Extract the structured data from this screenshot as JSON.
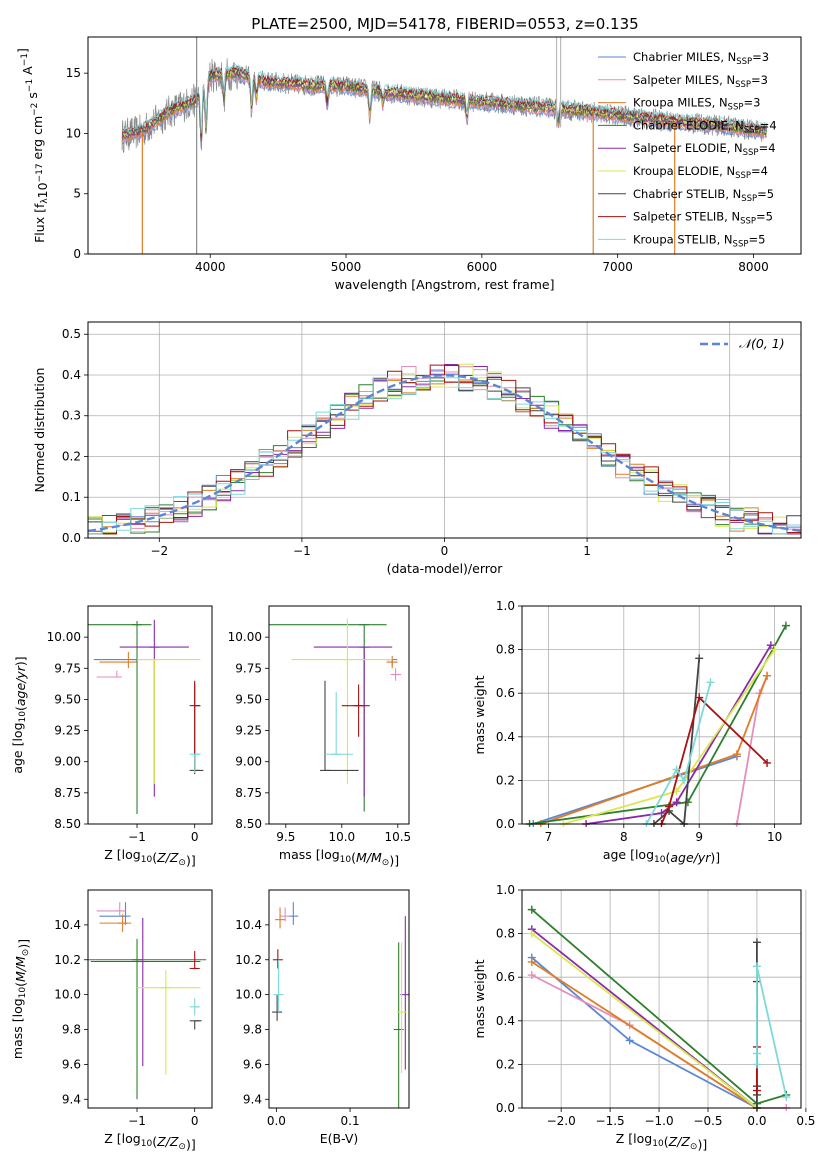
{
  "figure": {
    "title": "PLATE=2500, MJD=54178, FIBERID=0553, z=0.135"
  },
  "series_styles": [
    {
      "name": "Chabrier MILES, N_SSP=3",
      "color": "#5b86d6"
    },
    {
      "name": "Salpeter MILES, N_SSP=3",
      "color": "#e38fbd"
    },
    {
      "name": "Kroupa MILES, N_SSP=3",
      "color": "#e07d24"
    },
    {
      "name": "Chabrier ELODIE, N_SSP=4",
      "color": "#2e7f2e"
    },
    {
      "name": "Salpeter ELODIE, N_SSP=4",
      "color": "#8a2aa8"
    },
    {
      "name": "Kroupa ELODIE, N_SSP=4",
      "color": "#d8e84e"
    },
    {
      "name": "Chabrier STELIB, N_SSP=5",
      "color": "#444444"
    },
    {
      "name": "Salpeter STELIB, N_SSP=5",
      "color": "#aa1111"
    },
    {
      "name": "Kroupa STELIB, N_SSP=5",
      "color": "#7fd8d8"
    }
  ],
  "chart_data": [
    {
      "id": "spectrum",
      "type": "line",
      "title": "PLATE=2500, MJD=54178, FIBERID=0553, z=0.135",
      "xlabel": "wavelength [Angstrom, rest frame]",
      "ylabel": "Flux [f_λ10^-17 erg cm^-2 s^-1 A^-1]",
      "xlim": [
        3100,
        8350
      ],
      "ylim": [
        0,
        18
      ],
      "xticks": [
        "4000",
        "5000",
        "6000",
        "7000",
        "8000"
      ],
      "yticks": [
        "0",
        "5",
        "10",
        "15"
      ],
      "legend": {
        "placement": "top-right",
        "entries": [
          {
            "prefix": "Chabrier MILES, N",
            "sub": "SSP",
            "suffix": "=3"
          },
          {
            "prefix": "Salpeter MILES, N",
            "sub": "SSP",
            "suffix": "=3"
          },
          {
            "prefix": "Kroupa MILES, N",
            "sub": "SSP",
            "suffix": "=3"
          },
          {
            "prefix": "Chabrier ELODIE, N",
            "sub": "SSP",
            "suffix": "=4"
          },
          {
            "prefix": "Salpeter ELODIE, N",
            "sub": "SSP",
            "suffix": "=4"
          },
          {
            "prefix": "Kroupa ELODIE, N",
            "sub": "SSP",
            "suffix": "=4"
          },
          {
            "prefix": "Chabrier STELIB, N",
            "sub": "SSP",
            "suffix": "=5"
          },
          {
            "prefix": "Salpeter STELIB, N",
            "sub": "SSP",
            "suffix": "=5"
          },
          {
            "prefix": "Kroupa STELIB, N",
            "sub": "SSP",
            "suffix": "=5"
          }
        ]
      },
      "continuum_anchors": {
        "x": [
          3350,
          3500,
          3700,
          3900,
          4000,
          4200,
          4400,
          4700,
          5000,
          5300,
          5600,
          6000,
          6300,
          6600,
          7000,
          7400,
          7800,
          8050
        ],
        "y": [
          9.8,
          10.2,
          11.8,
          12.8,
          14.8,
          15.0,
          14.3,
          14.0,
          13.9,
          13.4,
          13.0,
          12.6,
          12.3,
          12.0,
          11.5,
          11.0,
          10.6,
          10.2
        ]
      },
      "absorption_lines": [
        {
          "x": 3934,
          "depth": 0.35
        },
        {
          "x": 3969,
          "depth": 0.3
        },
        {
          "x": 4101,
          "depth": 0.15
        },
        {
          "x": 4305,
          "depth": 0.2
        },
        {
          "x": 4340,
          "depth": 0.12
        },
        {
          "x": 4861,
          "depth": 0.12
        },
        {
          "x": 5175,
          "depth": 0.18
        },
        {
          "x": 5270,
          "depth": 0.08
        },
        {
          "x": 5890,
          "depth": 0.12
        },
        {
          "x": 6563,
          "depth": 0.1
        }
      ],
      "raw_data": {
        "color": "#8a8a8a",
        "xrange": [
          3350,
          8100
        ],
        "noise": 0.9
      },
      "spikes": [
        {
          "x": 3900,
          "ymin": 0,
          "ymax": 18,
          "color": "#8a8a8a"
        },
        {
          "x": 6550,
          "ymin": 10.5,
          "ymax": 18,
          "color": "#bbbbbb"
        },
        {
          "x": 6580,
          "ymin": 10.5,
          "ymax": 18,
          "color": "#bbbbbb"
        },
        {
          "x": 3500,
          "ymin": 0,
          "ymax": 10,
          "color": "#e07d24"
        },
        {
          "x": 6820,
          "ymin": 0,
          "ymax": 11.8,
          "color": "#e07d24"
        },
        {
          "x": 7420,
          "ymin": 0,
          "ymax": 11,
          "color": "#e07d24"
        }
      ]
    },
    {
      "id": "residuals",
      "type": "histogram",
      "xlabel": "(data-model)/error",
      "ylabel": "Normed distribution",
      "xlim": [
        -2.5,
        2.5
      ],
      "ylim": [
        0,
        0.53
      ],
      "xticks": [
        "−2",
        "−1",
        "0",
        "1",
        "2"
      ],
      "yticks": [
        "0.0",
        "0.1",
        "0.2",
        "0.3",
        "0.4",
        "0.5"
      ],
      "grid": true,
      "bin_width": 0.1,
      "gaussian": {
        "label": "𝒩(0, 1)",
        "color": "#5b86d6",
        "style": "dashed"
      },
      "legend": {
        "placement": "top-right"
      }
    },
    {
      "id": "age-vs-Z",
      "type": "errorbar",
      "xlabel": "Z [log10(Z/Z_sun)]",
      "ylabel": "age [log10(age/yr)]",
      "xlim": [
        -1.85,
        0.3
      ],
      "ylim": [
        8.5,
        10.25
      ],
      "xticks": [
        "−1",
        "0"
      ],
      "yticks": [
        "8.50",
        "8.75",
        "9.00",
        "9.25",
        "9.50",
        "9.75",
        "10.00"
      ],
      "points": [
        {
          "series": 0,
          "x": -1.0,
          "y": 9.82,
          "xerr": [
            0.75,
            0.0
          ],
          "yerr": [
            0.0,
            0.0
          ]
        },
        {
          "series": 1,
          "x": -1.35,
          "y": 9.68,
          "xerr": [
            0.35,
            0.05
          ],
          "yerr": [
            0.0,
            0.05
          ]
        },
        {
          "series": 2,
          "x": -1.15,
          "y": 9.8,
          "xerr": [
            0.5,
            0.15
          ],
          "yerr": [
            0.05,
            0.08
          ]
        },
        {
          "series": 3,
          "x": -1.0,
          "y": 10.1,
          "xerr": [
            0.85,
            0.25
          ],
          "yerr": [
            1.52,
            0.03
          ]
        },
        {
          "series": 4,
          "x": -0.7,
          "y": 9.92,
          "xerr": [
            0.6,
            0.6
          ],
          "yerr": [
            1.2,
            0.22
          ]
        },
        {
          "series": 5,
          "x": -0.7,
          "y": 9.82,
          "xerr": [
            0.3,
            0.8
          ],
          "yerr": [
            1.0,
            0.0
          ]
        },
        {
          "series": 6,
          "x": 0.0,
          "y": 8.93,
          "xerr": [
            0.0,
            0.15
          ],
          "yerr": [
            0.0,
            0.7
          ]
        },
        {
          "series": 7,
          "x": 0.0,
          "y": 9.45,
          "xerr": [
            0.0,
            0.1
          ],
          "yerr": [
            0.55,
            0.2
          ]
        },
        {
          "series": 8,
          "x": 0.0,
          "y": 9.06,
          "xerr": [
            0.0,
            0.1
          ],
          "yerr": [
            0.15,
            0.0
          ]
        }
      ]
    },
    {
      "id": "age-vs-mass",
      "type": "errorbar",
      "xlabel": "mass [log10(M/M_sun)]",
      "ylabel": "",
      "xlim": [
        9.35,
        10.6
      ],
      "ylim": [
        8.5,
        10.25
      ],
      "xticks": [
        "9.5",
        "10.0",
        "10.5"
      ],
      "yticks": [
        "8.50",
        "8.75",
        "9.00",
        "9.25",
        "9.50",
        "9.75",
        "10.00"
      ],
      "points": [
        {
          "series": 0,
          "x": 10.45,
          "y": 9.82,
          "xerr": [
            0.05,
            0.0
          ],
          "yerr": [
            0.05,
            0.0
          ]
        },
        {
          "series": 1,
          "x": 10.48,
          "y": 9.7,
          "xerr": [
            0.03,
            0.05
          ],
          "yerr": [
            0.05,
            0.05
          ]
        },
        {
          "series": 2,
          "x": 10.45,
          "y": 9.8,
          "xerr": [
            0.05,
            0.05
          ],
          "yerr": [
            0.05,
            0.05
          ]
        },
        {
          "series": 3,
          "x": 10.2,
          "y": 10.1,
          "xerr": [
            0.85,
            0.2
          ],
          "yerr": [
            1.5,
            0.0
          ]
        },
        {
          "series": 4,
          "x": 10.2,
          "y": 9.92,
          "xerr": [
            0.45,
            0.25
          ],
          "yerr": [
            1.2,
            0.0
          ]
        },
        {
          "series": 5,
          "x": 10.05,
          "y": 9.82,
          "xerr": [
            0.5,
            0.4
          ],
          "yerr": [
            1.0,
            0.33
          ]
        },
        {
          "series": 6,
          "x": 9.85,
          "y": 8.93,
          "xerr": [
            0.0,
            0.3
          ],
          "yerr": [
            0.0,
            0.72
          ]
        },
        {
          "series": 7,
          "x": 10.15,
          "y": 9.45,
          "xerr": [
            0.15,
            0.1
          ],
          "yerr": [
            0.25,
            0.17
          ]
        },
        {
          "series": 8,
          "x": 9.95,
          "y": 9.06,
          "xerr": [
            0.1,
            0.15
          ],
          "yerr": [
            0.0,
            0.5
          ]
        }
      ]
    },
    {
      "id": "mass-weight-vs-age",
      "type": "line",
      "xlabel": "age [log10(age/yr)]",
      "ylabel": "mass weight",
      "xlim": [
        6.65,
        10.35
      ],
      "ylim": [
        0,
        1.0
      ],
      "xticks": [
        "7",
        "8",
        "9",
        "10"
      ],
      "yticks": [
        "0.0",
        "0.2",
        "0.4",
        "0.6",
        "0.8",
        "1.0"
      ],
      "grid": true,
      "series": [
        {
          "series": 0,
          "x": [
            6.8,
            9.5
          ],
          "y": [
            0.0,
            0.31
          ]
        },
        {
          "series": 1,
          "x": [
            9.5,
            9.8,
            9.9
          ],
          "y": [
            0.0,
            0.6,
            0.68
          ]
        },
        {
          "series": 2,
          "x": [
            6.9,
            9.5,
            9.9
          ],
          "y": [
            0.0,
            0.32,
            0.68
          ]
        },
        {
          "series": 3,
          "x": [
            6.75,
            8.85,
            10.15
          ],
          "y": [
            0.0,
            0.1,
            0.91
          ]
        },
        {
          "series": 4,
          "x": [
            7.5,
            8.5,
            8.7,
            9.95
          ],
          "y": [
            0.0,
            0.05,
            0.1,
            0.82
          ]
        },
        {
          "series": 5,
          "x": [
            7.2,
            8.7,
            10.0
          ],
          "y": [
            0.0,
            0.15,
            0.8
          ]
        },
        {
          "series": 6,
          "x": [
            8.4,
            8.6,
            8.8,
            9.0
          ],
          "y": [
            0.0,
            0.06,
            0.0,
            0.76
          ]
        },
        {
          "series": 7,
          "x": [
            8.5,
            8.6,
            9.0,
            9.9
          ],
          "y": [
            0.0,
            0.08,
            0.58,
            0.28
          ]
        },
        {
          "series": 8,
          "x": [
            8.3,
            8.7,
            8.8,
            9.15
          ],
          "y": [
            0.0,
            0.25,
            0.2,
            0.65
          ]
        }
      ]
    },
    {
      "id": "mass-vs-Z",
      "type": "errorbar",
      "xlabel": "Z [log10(Z/Z_sun)]",
      "ylabel": "mass [log10(M/M_sun)]",
      "xlim": [
        -1.85,
        0.3
      ],
      "ylim": [
        9.35,
        10.6
      ],
      "xticks": [
        "−1",
        "0"
      ],
      "yticks": [
        "9.4",
        "9.6",
        "9.8",
        "10.0",
        "10.2",
        "10.4"
      ],
      "points": [
        {
          "series": 0,
          "x": -1.2,
          "y": 10.45,
          "xerr": [
            0.45,
            0.0
          ],
          "yerr": [
            0.05,
            0.08
          ]
        },
        {
          "series": 1,
          "x": -1.3,
          "y": 10.48,
          "xerr": [
            0.4,
            0.1
          ],
          "yerr": [
            0.03,
            0.05
          ]
        },
        {
          "series": 2,
          "x": -1.25,
          "y": 10.41,
          "xerr": [
            0.4,
            0.15
          ],
          "yerr": [
            0.05,
            0.05
          ]
        },
        {
          "series": 3,
          "x": -1.0,
          "y": 10.2,
          "xerr": [
            0.85,
            1.2
          ],
          "yerr": [
            0.8,
            0.12
          ]
        },
        {
          "series": 4,
          "x": -0.9,
          "y": 10.19,
          "xerr": [
            0.9,
            1.0
          ],
          "yerr": [
            0.6,
            0.25
          ]
        },
        {
          "series": 5,
          "x": -0.5,
          "y": 10.04,
          "xerr": [
            0.5,
            0.6
          ],
          "yerr": [
            0.5,
            0.1
          ]
        },
        {
          "series": 6,
          "x": 0.0,
          "y": 9.85,
          "xerr": [
            0.0,
            0.12
          ],
          "yerr": [
            0.05,
            0.0
          ]
        },
        {
          "series": 7,
          "x": 0.0,
          "y": 10.15,
          "xerr": [
            0.0,
            0.05
          ],
          "yerr": [
            0.0,
            0.1
          ]
        },
        {
          "series": 8,
          "x": 0.0,
          "y": 9.93,
          "xerr": [
            0.0,
            0.08
          ],
          "yerr": [
            0.05,
            0.05
          ]
        }
      ]
    },
    {
      "id": "mass-vs-ebv",
      "type": "errorbar",
      "xlabel": "E(B-V)",
      "ylabel": "",
      "xlim": [
        -0.01,
        0.18
      ],
      "ylim": [
        9.35,
        10.6
      ],
      "xticks": [
        "0.0",
        "0.1"
      ],
      "yticks": [
        "9.4",
        "9.6",
        "9.8",
        "10.0",
        "10.2",
        "10.4"
      ],
      "points": [
        {
          "series": 0,
          "x": 0.023,
          "y": 10.45,
          "xerr": [
            0.0,
            0.0
          ],
          "yerr": [
            0.05,
            0.08
          ]
        },
        {
          "series": 1,
          "x": 0.012,
          "y": 10.45,
          "xerr": [
            0.0,
            0.0
          ],
          "yerr": [
            0.03,
            0.05
          ]
        },
        {
          "series": 2,
          "x": 0.005,
          "y": 10.43,
          "xerr": [
            0.0,
            0.0
          ],
          "yerr": [
            0.05,
            0.07
          ]
        },
        {
          "series": 3,
          "x": 0.166,
          "y": 9.8,
          "xerr": [
            0.0,
            0.0
          ],
          "yerr": [
            0.45,
            0.5
          ]
        },
        {
          "series": 4,
          "x": 0.175,
          "y": 10.0,
          "xerr": [
            0.0,
            0.0
          ],
          "yerr": [
            0.43,
            0.45
          ]
        },
        {
          "series": 5,
          "x": 0.17,
          "y": 9.9,
          "xerr": [
            0.0,
            0.0
          ],
          "yerr": [
            0.35,
            0.4
          ]
        },
        {
          "series": 6,
          "x": 0.001,
          "y": 9.9,
          "xerr": [
            0.0,
            0.0
          ],
          "yerr": [
            0.05,
            0.1
          ]
        },
        {
          "series": 7,
          "x": 0.002,
          "y": 10.2,
          "xerr": [
            0.0,
            0.0
          ],
          "yerr": [
            0.05,
            0.06
          ]
        },
        {
          "series": 8,
          "x": 0.003,
          "y": 10.0,
          "xerr": [
            0.0,
            0.0
          ],
          "yerr": [
            0.1,
            0.2
          ]
        }
      ]
    },
    {
      "id": "mass-weight-vs-Z",
      "type": "line",
      "xlabel": "Z [log10(Z/Z_sun)]",
      "ylabel": "mass weight",
      "xlim": [
        -2.4,
        0.45
      ],
      "ylim": [
        0,
        1.0
      ],
      "xticks": [
        "−2.0",
        "−1.5",
        "−1.0",
        "−0.5",
        "0.0",
        "0.5"
      ],
      "yticks": [
        "0.0",
        "0.2",
        "0.4",
        "0.6",
        "0.8",
        "1.0"
      ],
      "grid": true,
      "series": [
        {
          "series": 0,
          "x": [
            -2.3,
            -1.3,
            0.0
          ],
          "y": [
            0.69,
            0.31,
            0.0
          ]
        },
        {
          "series": 1,
          "x": [
            -2.3,
            -1.3,
            0.0,
            0.3
          ],
          "y": [
            0.61,
            0.38,
            0.0,
            0.0
          ]
        },
        {
          "series": 2,
          "x": [
            -2.3,
            0.0
          ],
          "y": [
            0.67,
            0.0
          ]
        },
        {
          "series": 3,
          "x": [
            -2.3,
            0.0,
            0.3
          ],
          "y": [
            0.91,
            0.02,
            0.06
          ]
        },
        {
          "series": 4,
          "x": [
            -2.3,
            0.0
          ],
          "y": [
            0.82,
            0.0
          ]
        },
        {
          "series": 5,
          "x": [
            -2.3,
            0.0
          ],
          "y": [
            0.8,
            0.0
          ]
        },
        {
          "series": 6,
          "x": [
            0.0,
            0.0,
            0.0,
            0.0
          ],
          "y": [
            0.0,
            0.06,
            0.1,
            0.76
          ]
        },
        {
          "series": 7,
          "x": [
            0.0,
            0.0,
            0.0
          ],
          "y": [
            0.08,
            0.28,
            0.58
          ]
        },
        {
          "series": 8,
          "x": [
            0.0,
            0.0,
            0.0,
            0.3
          ],
          "y": [
            0.2,
            0.25,
            0.65,
            0.05
          ]
        }
      ]
    }
  ]
}
